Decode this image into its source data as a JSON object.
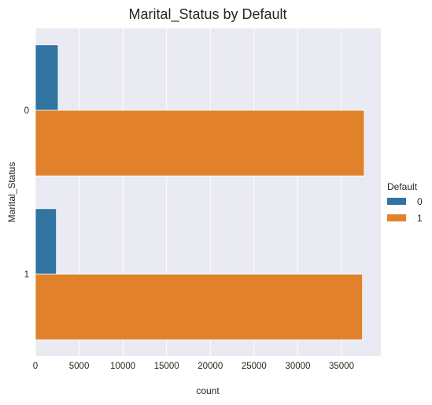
{
  "chart_data": {
    "type": "bar",
    "orientation": "horizontal",
    "title": "Marital_Status by Default",
    "xlabel": "count",
    "ylabel": "Marital_Status",
    "categories": [
      "0",
      "1"
    ],
    "series": [
      {
        "name": "0",
        "color": "#3274a1",
        "values": [
          2600,
          2400
        ]
      },
      {
        "name": "1",
        "color": "#e1812c",
        "values": [
          37600,
          37400
        ]
      }
    ],
    "xlim": [
      0,
      39500
    ],
    "xticks": [
      0,
      5000,
      10000,
      15000,
      20000,
      25000,
      30000,
      35000
    ],
    "grid": true,
    "legend": {
      "title": "Default",
      "placement": "right"
    },
    "background": "#eaeaf2"
  }
}
